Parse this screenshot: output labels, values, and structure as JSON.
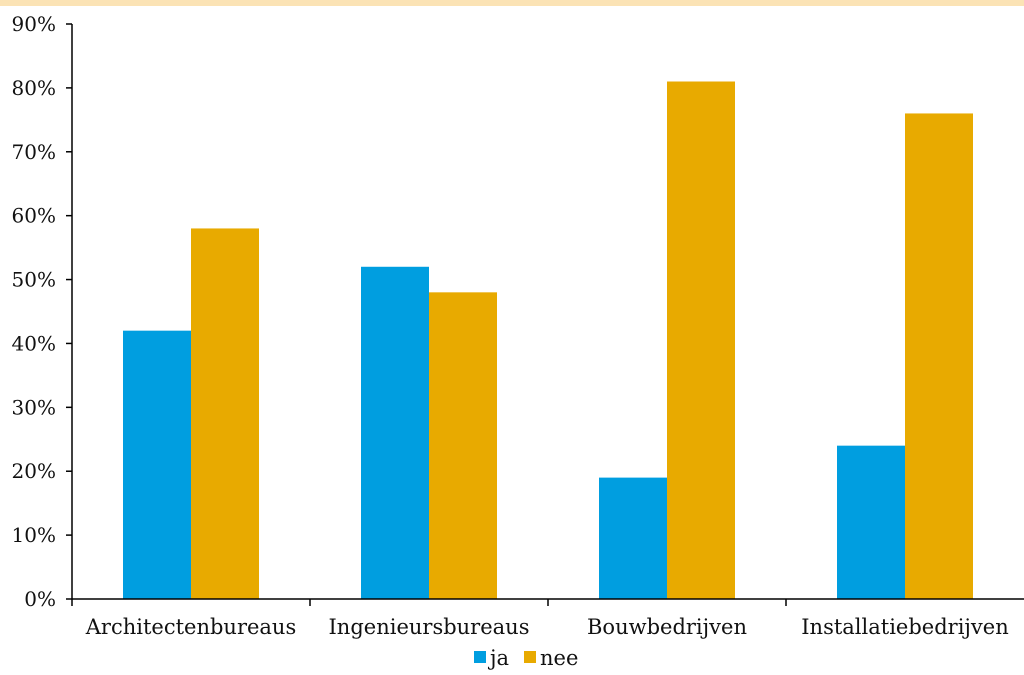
{
  "chart_data": {
    "type": "bar",
    "categories": [
      "Architectenbureaus",
      "Ingenieursbureaus",
      "Bouwbedrijven",
      "Installatiebedrijven"
    ],
    "series": [
      {
        "name": "ja",
        "values": [
          42,
          52,
          19,
          24
        ],
        "color": "#009ee0"
      },
      {
        "name": "nee",
        "values": [
          58,
          48,
          81,
          76
        ],
        "color": "#e8aa00"
      }
    ],
    "y_ticks": [
      "0%",
      "10%",
      "20%",
      "30%",
      "40%",
      "50%",
      "60%",
      "70%",
      "80%",
      "90%"
    ],
    "ylim": [
      0,
      90
    ],
    "grid": false,
    "legend_position": "bottom-center",
    "title": "",
    "xlabel": "",
    "ylabel": ""
  }
}
